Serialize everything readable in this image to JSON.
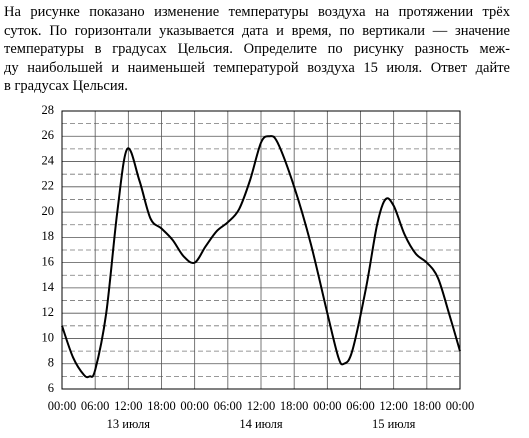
{
  "text_lines": [
    "На рисунке показано изменение температуры воздуха на протяжении трёх",
    "суток. По горизонтали указывается дата и время, по вертикали — значение",
    "температуры в градусах Цельсия. Определите по рисунку разность меж-",
    "ду наибольшей и наименьшей температурой воздуха 15 июля. Ответ дайте",
    "в градусах Цельсия."
  ],
  "chart_data": {
    "type": "line",
    "x": [
      0,
      2,
      4,
      5,
      6,
      8,
      10,
      11.8,
      14,
      16,
      18,
      20,
      22,
      24,
      26,
      28,
      30,
      32,
      34,
      36,
      37.5,
      39,
      42,
      45,
      48,
      50,
      51,
      52.5,
      55,
      57,
      58.5,
      60,
      62,
      64,
      66,
      68,
      70,
      72
    ],
    "values": [
      11,
      8.5,
      7.1,
      7,
      7.5,
      12,
      20,
      25,
      22.5,
      19.5,
      18.7,
      17.8,
      16.5,
      16,
      17.3,
      18.5,
      19.2,
      20.2,
      22.5,
      25.5,
      26,
      25.5,
      22,
      17.5,
      12,
      8.5,
      8,
      9,
      14,
      19,
      21,
      20.5,
      18.2,
      16.7,
      16,
      14.8,
      12,
      9
    ],
    "color": "#000000",
    "xlim": [
      0,
      72
    ],
    "xticks": [
      {
        "value": 0,
        "label": "00:00"
      },
      {
        "value": 6,
        "label": "06:00"
      },
      {
        "value": 12,
        "label": "12:00"
      },
      {
        "value": 18,
        "label": "18:00"
      },
      {
        "value": 24,
        "label": "00:00"
      },
      {
        "value": 30,
        "label": "06:00"
      },
      {
        "value": 36,
        "label": "12:00"
      },
      {
        "value": 42,
        "label": "18:00"
      },
      {
        "value": 48,
        "label": "00:00"
      },
      {
        "value": 54,
        "label": "06:00"
      },
      {
        "value": 60,
        "label": "12:00"
      },
      {
        "value": 66,
        "label": "18:00"
      },
      {
        "value": 72,
        "label": "00:00"
      }
    ],
    "day_labels": [
      "13 июля",
      "14 июля",
      "15 июля"
    ],
    "ylim": [
      6,
      28
    ],
    "yticks": [
      6,
      8,
      10,
      12,
      14,
      16,
      18,
      20,
      22,
      24,
      26,
      28
    ],
    "yticks_minor": [
      7,
      9,
      11,
      13,
      15,
      17,
      19,
      21,
      23,
      25,
      27
    ],
    "grid": true
  }
}
